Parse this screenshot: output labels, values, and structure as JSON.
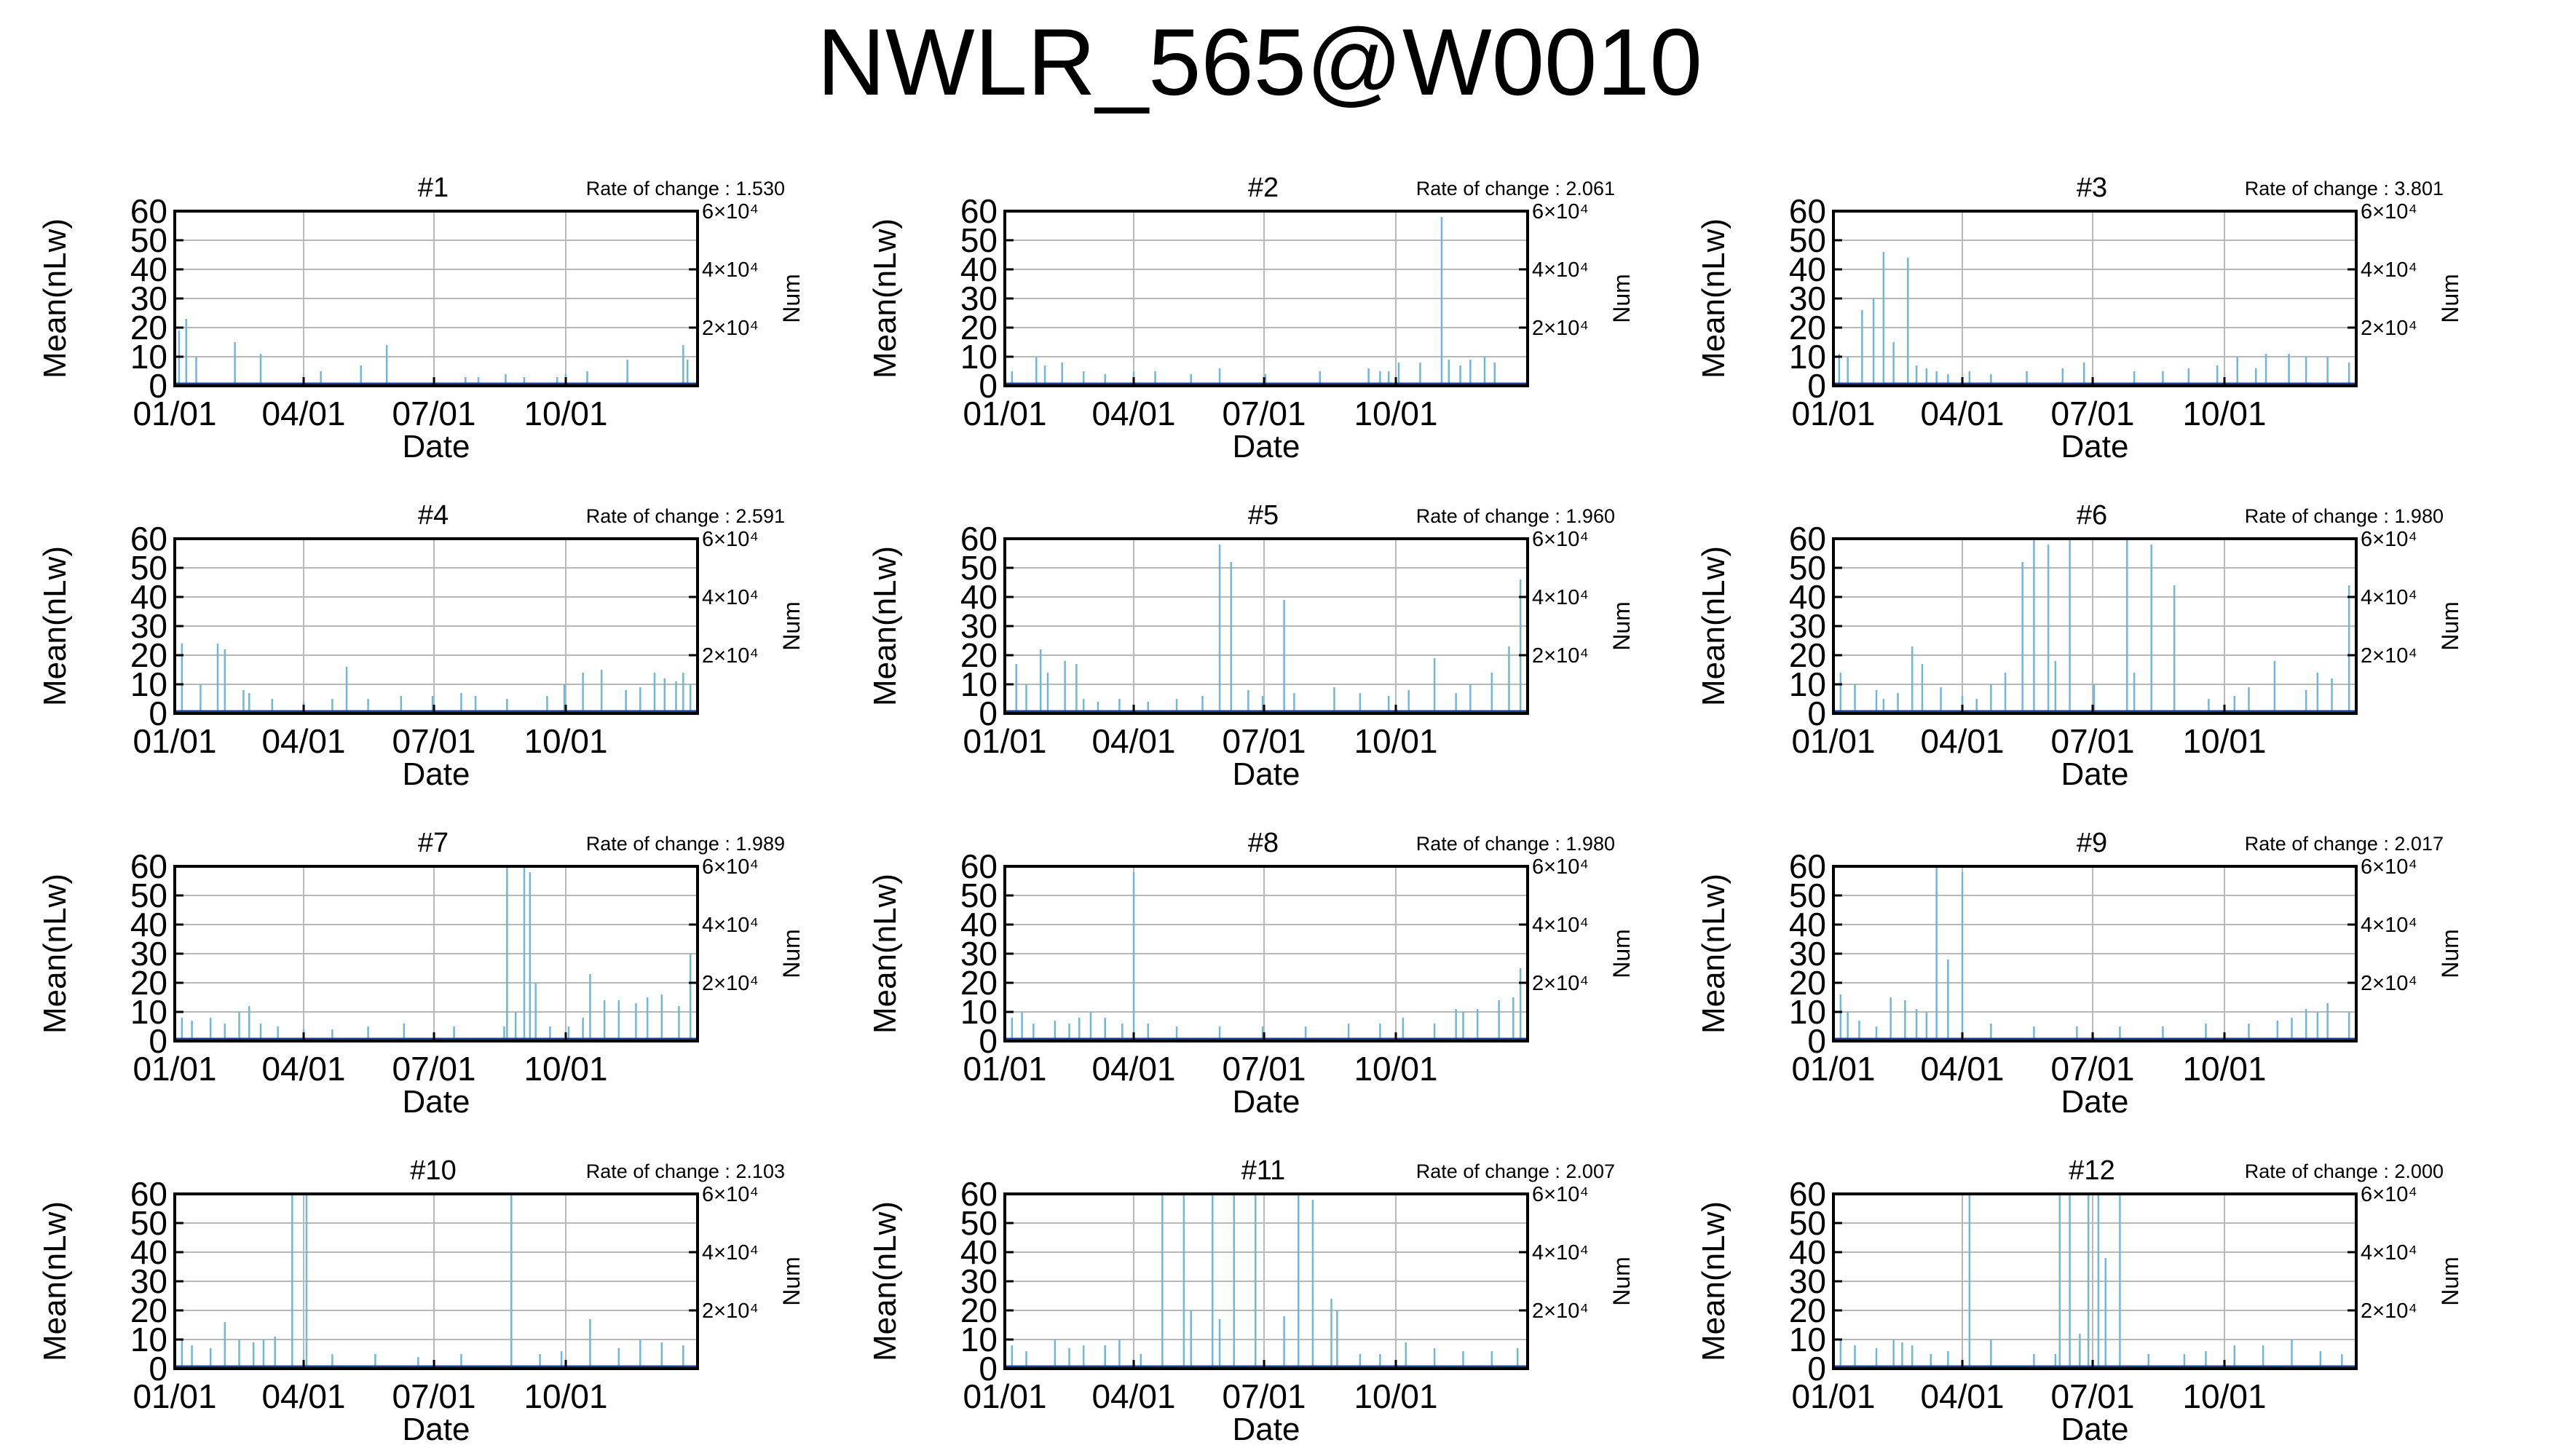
{
  "title": "NWLR_565@W0010",
  "colors": {
    "bar": "#6fb8d8",
    "grid": "#b8b8b8",
    "frame": "#000000",
    "base": "#1a3e99"
  },
  "chart_data": [
    {
      "type": "bar",
      "title": "#1",
      "rate_label": "Rate of change : 1.530",
      "xlabel": "Date",
      "ylabel": "Mean(nLw)",
      "y2label": "Num",
      "x_ticks": [
        "01/01",
        "04/01",
        "07/01",
        "10/01"
      ],
      "y_ticks": [
        0,
        10,
        20,
        30,
        40,
        50,
        60
      ],
      "y2_ticks": [
        "2×10⁴",
        "4×10⁴",
        "6×10⁴"
      ],
      "ylim": [
        0,
        60
      ],
      "grid": true,
      "x_day_of_year": [
        3,
        8,
        15,
        42,
        60,
        102,
        130,
        148,
        203,
        212,
        231,
        244,
        267,
        273,
        288,
        316,
        355,
        358
      ],
      "values": [
        19,
        23,
        10,
        15,
        11,
        5,
        7,
        14,
        3,
        3,
        4,
        3,
        3,
        4,
        5,
        9,
        14,
        9
      ]
    },
    {
      "type": "bar",
      "title": "#2",
      "rate_label": "Rate of change : 2.061",
      "xlabel": "Date",
      "ylabel": "Mean(nLw)",
      "y2label": "Num",
      "x_ticks": [
        "01/01",
        "04/01",
        "07/01",
        "10/01"
      ],
      "y_ticks": [
        0,
        10,
        20,
        30,
        40,
        50,
        60
      ],
      "y2_ticks": [
        "2×10⁴",
        "4×10⁴",
        "6×10⁴"
      ],
      "ylim": [
        0,
        60
      ],
      "grid": true,
      "x_day_of_year": [
        5,
        22,
        28,
        40,
        55,
        70,
        90,
        105,
        130,
        150,
        182,
        220,
        254,
        262,
        268,
        275,
        290,
        305,
        310,
        318,
        325,
        335,
        342
      ],
      "values": [
        5,
        10,
        7,
        8,
        5,
        4,
        5,
        5,
        4,
        6,
        4,
        5,
        6,
        5,
        5,
        8,
        8,
        58,
        9,
        7,
        9,
        10,
        8
      ]
    },
    {
      "type": "bar",
      "title": "#3",
      "rate_label": "Rate of change : 3.801",
      "xlabel": "Date",
      "ylabel": "Mean(nLw)",
      "y2label": "Num",
      "x_ticks": [
        "01/01",
        "04/01",
        "07/01",
        "10/01"
      ],
      "y_ticks": [
        0,
        10,
        20,
        30,
        40,
        50,
        60
      ],
      "y2_ticks": [
        "2×10⁴",
        "4×10⁴",
        "6×10⁴"
      ],
      "ylim": [
        0,
        60
      ],
      "grid": true,
      "x_day_of_year": [
        4,
        10,
        20,
        28,
        35,
        42,
        52,
        58,
        65,
        72,
        80,
        95,
        110,
        135,
        160,
        175,
        210,
        230,
        248,
        268,
        282,
        295,
        302,
        318,
        330,
        345,
        360
      ],
      "values": [
        11,
        10,
        26,
        30,
        46,
        15,
        44,
        7,
        6,
        5,
        4,
        5,
        4,
        5,
        6,
        8,
        5,
        5,
        6,
        7,
        10,
        6,
        11,
        11,
        10,
        10,
        8
      ]
    },
    {
      "type": "bar",
      "title": "#4",
      "rate_label": "Rate of change : 2.591",
      "xlabel": "Date",
      "ylabel": "Mean(nLw)",
      "y2label": "Num",
      "x_ticks": [
        "01/01",
        "04/01",
        "07/01",
        "10/01"
      ],
      "y_ticks": [
        0,
        10,
        20,
        30,
        40,
        50,
        60
      ],
      "y2_ticks": [
        "2×10⁴",
        "4×10⁴",
        "6×10⁴"
      ],
      "ylim": [
        0,
        60
      ],
      "grid": true,
      "x_day_of_year": [
        5,
        18,
        30,
        35,
        48,
        52,
        68,
        90,
        110,
        120,
        135,
        158,
        180,
        200,
        210,
        232,
        260,
        272,
        285,
        298,
        315,
        325,
        335,
        342,
        350,
        355,
        360
      ],
      "values": [
        24,
        10,
        24,
        22,
        8,
        7,
        5,
        4,
        5,
        16,
        5,
        6,
        6,
        7,
        6,
        5,
        6,
        10,
        14,
        15,
        8,
        9,
        14,
        12,
        11,
        14,
        10
      ]
    },
    {
      "type": "bar",
      "title": "#5",
      "rate_label": "Rate of change : 1.960",
      "xlabel": "Date",
      "ylabel": "Mean(nLw)",
      "y2label": "Num",
      "x_ticks": [
        "01/01",
        "04/01",
        "07/01",
        "10/01"
      ],
      "y_ticks": [
        0,
        10,
        20,
        30,
        40,
        50,
        60
      ],
      "y2_ticks": [
        "2×10⁴",
        "4×10⁴",
        "6×10⁴"
      ],
      "ylim": [
        0,
        60
      ],
      "grid": true,
      "x_day_of_year": [
        8,
        15,
        25,
        30,
        42,
        50,
        55,
        65,
        80,
        100,
        120,
        138,
        150,
        158,
        170,
        180,
        195,
        202,
        230,
        248,
        268,
        282,
        300,
        315,
        325,
        340,
        352,
        360
      ],
      "values": [
        17,
        10,
        22,
        14,
        18,
        17,
        5,
        4,
        5,
        4,
        5,
        6,
        58,
        52,
        8,
        6,
        39,
        7,
        9,
        7,
        6,
        8,
        19,
        7,
        10,
        14,
        23,
        46
      ]
    },
    {
      "type": "bar",
      "title": "#6",
      "rate_label": "Rate of change : 1.980",
      "xlabel": "Date",
      "ylabel": "Mean(nLw)",
      "y2label": "Num",
      "x_ticks": [
        "01/01",
        "04/01",
        "07/01",
        "10/01"
      ],
      "y_ticks": [
        0,
        10,
        20,
        30,
        40,
        50,
        60
      ],
      "y2_ticks": [
        "2×10⁴",
        "4×10⁴",
        "6×10⁴"
      ],
      "ylim": [
        0,
        60
      ],
      "grid": true,
      "x_day_of_year": [
        5,
        15,
        30,
        35,
        45,
        55,
        62,
        75,
        90,
        100,
        110,
        120,
        132,
        140,
        150,
        155,
        165,
        182,
        205,
        210,
        222,
        238,
        262,
        280,
        290,
        308,
        330,
        338,
        348,
        360
      ],
      "values": [
        14,
        10,
        8,
        5,
        7,
        23,
        17,
        9,
        6,
        5,
        10,
        14,
        52,
        60,
        58,
        18,
        60,
        10,
        60,
        14,
        58,
        44,
        5,
        6,
        9,
        18,
        8,
        14,
        12,
        44
      ]
    },
    {
      "type": "bar",
      "title": "#7",
      "rate_label": "Rate of change : 1.989",
      "xlabel": "Date",
      "ylabel": "Mean(nLw)",
      "y2label": "Num",
      "x_ticks": [
        "01/01",
        "04/01",
        "07/01",
        "10/01"
      ],
      "y_ticks": [
        0,
        10,
        20,
        30,
        40,
        50,
        60
      ],
      "y2_ticks": [
        "2×10⁴",
        "4×10⁴",
        "6×10⁴"
      ],
      "ylim": [
        0,
        60
      ],
      "grid": true,
      "x_day_of_year": [
        5,
        12,
        25,
        35,
        45,
        52,
        60,
        72,
        90,
        110,
        135,
        160,
        195,
        230,
        232,
        238,
        244,
        248,
        252,
        262,
        275,
        285,
        290,
        300,
        310,
        322,
        330,
        340,
        352,
        360
      ],
      "values": [
        8,
        7,
        8,
        6,
        10,
        12,
        6,
        5,
        4,
        4,
        5,
        6,
        5,
        5,
        60,
        10,
        60,
        58,
        20,
        5,
        5,
        8,
        23,
        14,
        14,
        13,
        15,
        16,
        12,
        30
      ]
    },
    {
      "type": "bar",
      "title": "#8",
      "rate_label": "Rate of change : 1.980",
      "xlabel": "Date",
      "ylabel": "Mean(nLw)",
      "y2label": "Num",
      "x_ticks": [
        "01/01",
        "04/01",
        "07/01",
        "10/01"
      ],
      "y_ticks": [
        0,
        10,
        20,
        30,
        40,
        50,
        60
      ],
      "y2_ticks": [
        "2×10⁴",
        "4×10⁴",
        "6×10⁴"
      ],
      "ylim": [
        0,
        60
      ],
      "grid": true,
      "x_day_of_year": [
        5,
        12,
        20,
        35,
        45,
        52,
        60,
        70,
        82,
        90,
        100,
        120,
        150,
        180,
        210,
        240,
        262,
        278,
        300,
        315,
        320,
        330,
        345,
        355,
        360
      ],
      "values": [
        8,
        10,
        6,
        7,
        6,
        8,
        10,
        8,
        6,
        58,
        6,
        5,
        5,
        5,
        5,
        6,
        6,
        8,
        6,
        11,
        10,
        11,
        14,
        15,
        25
      ]
    },
    {
      "type": "bar",
      "title": "#9",
      "rate_label": "Rate of change : 2.017",
      "xlabel": "Date",
      "ylabel": "Mean(nLw)",
      "y2label": "Num",
      "x_ticks": [
        "01/01",
        "04/01",
        "07/01",
        "10/01"
      ],
      "y_ticks": [
        0,
        10,
        20,
        30,
        40,
        50,
        60
      ],
      "y2_ticks": [
        "2×10⁴",
        "4×10⁴",
        "6×10⁴"
      ],
      "ylim": [
        0,
        60
      ],
      "grid": true,
      "x_day_of_year": [
        5,
        10,
        18,
        30,
        40,
        50,
        58,
        65,
        72,
        80,
        90,
        110,
        140,
        170,
        200,
        230,
        260,
        290,
        310,
        320,
        330,
        338,
        345,
        360
      ],
      "values": [
        16,
        10,
        7,
        5,
        15,
        14,
        11,
        10,
        60,
        28,
        58,
        6,
        5,
        5,
        5,
        5,
        6,
        6,
        7,
        8,
        11,
        10,
        13,
        10
      ]
    },
    {
      "type": "bar",
      "title": "#10",
      "rate_label": "Rate of change : 2.103",
      "xlabel": "Date",
      "ylabel": "Mean(nLw)",
      "y2label": "Num",
      "x_ticks": [
        "01/01",
        "04/01",
        "07/01",
        "10/01"
      ],
      "y_ticks": [
        0,
        10,
        20,
        30,
        40,
        50,
        60
      ],
      "y2_ticks": [
        "2×10⁴",
        "4×10⁴",
        "6×10⁴"
      ],
      "ylim": [
        0,
        60
      ],
      "grid": true,
      "x_day_of_year": [
        5,
        12,
        25,
        35,
        45,
        55,
        62,
        70,
        82,
        92,
        110,
        140,
        170,
        200,
        235,
        255,
        270,
        290,
        310,
        325,
        340,
        355
      ],
      "values": [
        10,
        8,
        7,
        16,
        10,
        9,
        10,
        11,
        60,
        60,
        5,
        5,
        4,
        5,
        60,
        5,
        6,
        17,
        7,
        10,
        9,
        8
      ]
    },
    {
      "type": "bar",
      "title": "#11",
      "rate_label": "Rate of change : 2.007",
      "xlabel": "Date",
      "ylabel": "Mean(nLw)",
      "y2label": "Num",
      "x_ticks": [
        "01/01",
        "04/01",
        "07/01",
        "10/01"
      ],
      "y_ticks": [
        0,
        10,
        20,
        30,
        40,
        50,
        60
      ],
      "y2_ticks": [
        "2×10⁴",
        "4×10⁴",
        "6×10⁴"
      ],
      "ylim": [
        0,
        60
      ],
      "grid": true,
      "x_day_of_year": [
        5,
        15,
        35,
        45,
        55,
        70,
        80,
        95,
        110,
        125,
        130,
        145,
        150,
        160,
        175,
        195,
        205,
        215,
        228,
        232,
        248,
        262,
        280,
        300,
        320,
        340,
        358
      ],
      "values": [
        8,
        6,
        10,
        7,
        8,
        8,
        10,
        5,
        60,
        60,
        20,
        60,
        17,
        60,
        60,
        18,
        60,
        58,
        24,
        20,
        5,
        5,
        9,
        7,
        6,
        6,
        7
      ]
    },
    {
      "type": "bar",
      "title": "#12",
      "rate_label": "Rate of change : 2.000",
      "xlabel": "Date",
      "ylabel": "Mean(nLw)",
      "y2label": "Num",
      "x_ticks": [
        "01/01",
        "04/01",
        "07/01",
        "10/01"
      ],
      "y_ticks": [
        0,
        10,
        20,
        30,
        40,
        50,
        60
      ],
      "y2_ticks": [
        "2×10⁴",
        "4×10⁴",
        "6×10⁴"
      ],
      "ylim": [
        0,
        60
      ],
      "grid": true,
      "x_day_of_year": [
        5,
        15,
        30,
        42,
        48,
        55,
        68,
        80,
        95,
        110,
        140,
        155,
        158,
        165,
        172,
        178,
        185,
        190,
        200,
        220,
        245,
        260,
        280,
        300,
        320,
        340,
        355
      ],
      "values": [
        10,
        8,
        7,
        10,
        9,
        8,
        5,
        6,
        60,
        10,
        5,
        5,
        60,
        60,
        12,
        60,
        60,
        38,
        60,
        5,
        5,
        6,
        8,
        8,
        10,
        6,
        5
      ]
    }
  ]
}
